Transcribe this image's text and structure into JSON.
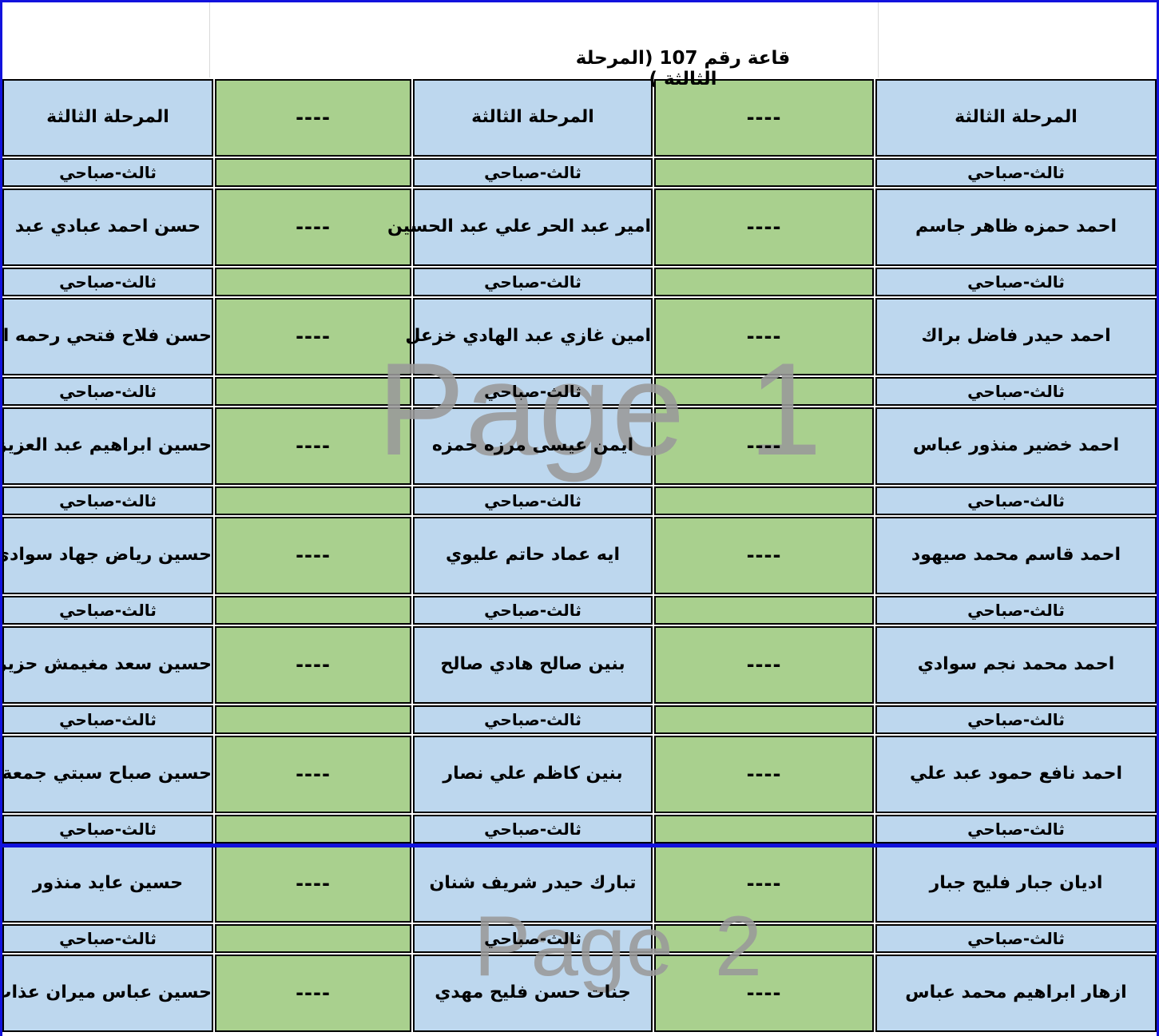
{
  "title": "قاعة رقم 107 (المرحلة الثالثة )",
  "watermarks": {
    "page1": "Page 1",
    "page2": "Page 2"
  },
  "colors": {
    "blue_cell": "#BDD7EE",
    "green_cell": "#A9D08E",
    "page_break_blue": "#1212dd",
    "watermark_gray": "#9a9a9a"
  },
  "table": {
    "stage_header": "المرحلة الثالثة",
    "session_label": "ثالث-صباحي",
    "dash_placeholder": "----",
    "pairs": [
      {
        "right": "احمد حمزه ظاهر جاسم",
        "middle": "امير عبد الحر علي عبد الحسين",
        "left": "حسن احمد عبادي عبد"
      },
      {
        "right": "احمد حيدر فاضل براك",
        "middle": "امين غازي عبد الهادي خزعل",
        "left": "حسن فلاح فتحي رحمه الله"
      },
      {
        "right": "احمد خضير منذور عباس",
        "middle": "ايمن عيسى مرزه حمزه",
        "left": "حسين ابراهيم عبد العزيز حسن"
      },
      {
        "right": "احمد قاسم محمد صيهود",
        "middle": "ايه عماد حاتم عليوي",
        "left": "حسين رياض جهاد سوادي"
      },
      {
        "right": "احمد محمد نجم سوادي",
        "middle": "بنين صالح هادي صالح",
        "left": "حسين سعد مغيمش حزيران"
      },
      {
        "right": "احمد نافع حمود عبد علي",
        "middle": "بنين كاظم علي نصار",
        "left": "حسين صباح سبتي جمعة"
      },
      {
        "right": "اديان جبار فليح جبار",
        "middle": "تبارك حيدر شريف شنان",
        "left": "حسين عايد منذور"
      },
      {
        "right": "ازهار ابراهيم محمد عباس",
        "middle": "جنات حسن فليح مهدي",
        "left": "حسين عباس ميران عذاب"
      }
    ]
  }
}
